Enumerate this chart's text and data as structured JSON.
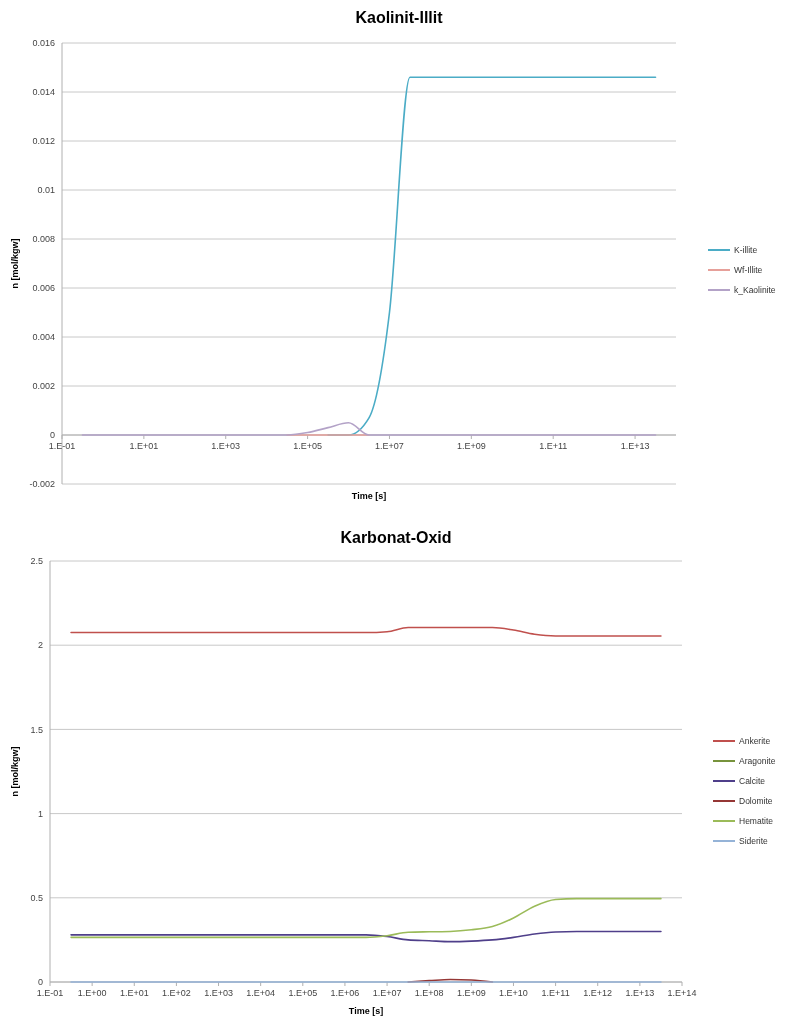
{
  "chart_data": [
    {
      "type": "line",
      "title": "Kaolinit-Illit",
      "xlabel": "Time [s]",
      "ylabel": "n [mol/kgw]",
      "grid": "y",
      "legend": "right",
      "categories": [
        "1.E-01",
        null,
        null,
        null,
        "1.E+01",
        null,
        null,
        null,
        "1.E+03",
        null,
        null,
        null,
        "1.E+05",
        null,
        null,
        null,
        "1.E+07",
        null,
        null,
        null,
        "1.E+09",
        null,
        null,
        null,
        "1.E+11",
        null,
        null,
        null,
        "1.E+13",
        null,
        null
      ],
      "ylim": [
        -0.002,
        0.016
      ],
      "yticks": [
        -0.002,
        0,
        0.002,
        0.004,
        0.006,
        0.008,
        0.01,
        0.012,
        0.014,
        0.016
      ],
      "series": [
        {
          "name": "K-illite",
          "color": "#4bacc6",
          "values": [
            null,
            null,
            null,
            null,
            null,
            null,
            null,
            null,
            null,
            null,
            null,
            null,
            null,
            0,
            0,
            0.0007,
            0.005,
            0.0146,
            0.0146,
            0.0146,
            0.0146,
            0.0146,
            0.0146,
            0.0146,
            0.0146,
            0.0146,
            0.0146,
            0.0146,
            0.0146,
            0.0146,
            null
          ]
        },
        {
          "name": "Wf-Illite",
          "color": "#e6a09a",
          "values": [
            null,
            null,
            null,
            null,
            null,
            null,
            null,
            null,
            null,
            null,
            null,
            0,
            0,
            0,
            0,
            0,
            null,
            null,
            null,
            null,
            null,
            null,
            null,
            null,
            null,
            null,
            null,
            null,
            null,
            null,
            null
          ]
        },
        {
          "name": "k_Kaolinite",
          "color": "#b3a2c7",
          "values": [
            null,
            0,
            0,
            0,
            0,
            0,
            0,
            0,
            0,
            0,
            0,
            0,
            0.0001,
            0.0003,
            0.0005,
            0,
            0,
            0,
            0,
            0,
            0,
            0,
            0,
            0,
            0,
            0,
            0,
            0,
            0,
            0,
            null
          ]
        }
      ]
    },
    {
      "type": "line",
      "title": "Karbonat-Oxid",
      "xlabel": "Time [s]",
      "ylabel": "n [mol/kgw]",
      "grid": "y",
      "legend": "right",
      "categories": [
        "1.E-01",
        null,
        "1.E+00",
        null,
        "1.E+01",
        null,
        "1.E+02",
        null,
        "1.E+03",
        null,
        "1.E+04",
        null,
        "1.E+05",
        null,
        "1.E+06",
        null,
        "1.E+07",
        null,
        "1.E+08",
        null,
        "1.E+09",
        null,
        "1.E+10",
        null,
        "1.E+11",
        null,
        "1.E+12",
        null,
        "1.E+13",
        null,
        "1.E+14"
      ],
      "ylim": [
        0,
        2.5
      ],
      "yticks": [
        0,
        0.5,
        1,
        1.5,
        2,
        2.5
      ],
      "series": [
        {
          "name": "Ankerite",
          "color": "#c0504d",
          "values": [
            null,
            2.075,
            2.075,
            2.075,
            2.075,
            2.075,
            2.075,
            2.075,
            2.075,
            2.075,
            2.075,
            2.075,
            2.075,
            2.075,
            2.075,
            2.075,
            2.08,
            2.105,
            2.105,
            2.105,
            2.105,
            2.105,
            2.09,
            2.065,
            2.055,
            2.055,
            2.055,
            2.055,
            2.055,
            2.055,
            null
          ]
        },
        {
          "name": "Aragonite",
          "color": "#77933c",
          "values": [
            null,
            null,
            null,
            null,
            null,
            null,
            null,
            null,
            null,
            null,
            null,
            null,
            null,
            null,
            null,
            null,
            null,
            null,
            null,
            null,
            null,
            null,
            null,
            null,
            null,
            null,
            null,
            null,
            null,
            null,
            null
          ]
        },
        {
          "name": "Calcite",
          "color": "#4f3f8a",
          "values": [
            null,
            0.28,
            0.28,
            0.28,
            0.28,
            0.28,
            0.28,
            0.28,
            0.28,
            0.28,
            0.28,
            0.28,
            0.28,
            0.28,
            0.28,
            0.28,
            0.27,
            0.25,
            0.245,
            0.24,
            0.243,
            0.25,
            0.265,
            0.285,
            0.297,
            0.3,
            0.3,
            0.3,
            0.3,
            0.3,
            null
          ]
        },
        {
          "name": "Dolomite",
          "color": "#953735",
          "values": [
            null,
            null,
            null,
            null,
            null,
            null,
            null,
            null,
            null,
            null,
            null,
            null,
            null,
            null,
            null,
            null,
            null,
            0,
            0.008,
            0.015,
            0.012,
            0,
            null,
            null,
            null,
            null,
            null,
            null,
            null,
            null,
            null
          ]
        },
        {
          "name": "Hematite",
          "color": "#9bbb59",
          "values": [
            null,
            0.265,
            0.265,
            0.265,
            0.265,
            0.265,
            0.265,
            0.265,
            0.265,
            0.265,
            0.265,
            0.265,
            0.265,
            0.265,
            0.265,
            0.265,
            0.275,
            0.295,
            0.298,
            0.3,
            0.31,
            0.33,
            0.38,
            0.45,
            0.49,
            0.495,
            0.495,
            0.495,
            0.495,
            0.495,
            null
          ]
        },
        {
          "name": "Siderite",
          "color": "#95b3d7",
          "values": [
            null,
            0,
            0,
            0,
            0,
            0,
            0,
            0,
            0,
            0,
            0,
            0,
            0,
            0,
            0,
            0,
            0,
            0,
            0,
            0,
            0,
            0,
            0,
            0,
            0,
            0,
            0,
            0,
            0,
            0,
            null
          ]
        }
      ]
    }
  ]
}
